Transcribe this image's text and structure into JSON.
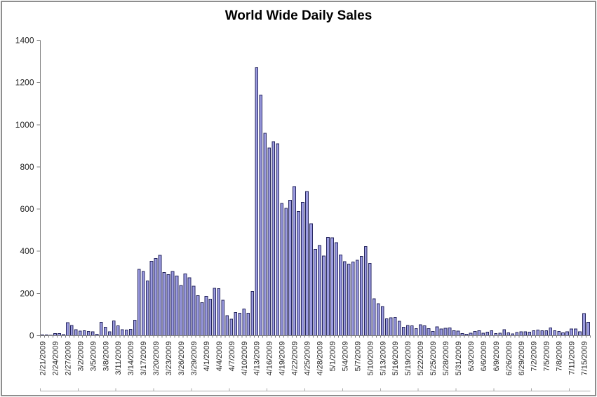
{
  "window": {
    "background": "#FFFFFF",
    "frame_border_color": "#8E8E8E"
  },
  "chart_data": {
    "type": "bar",
    "title": "World Wide Daily Sales",
    "xlabel": "",
    "ylabel": "",
    "ylim": [
      0,
      1400
    ],
    "y_tick_step": 200,
    "y_ticks": [
      0,
      200,
      400,
      600,
      800,
      1000,
      1200,
      1400
    ],
    "grid": "off",
    "legend": "none",
    "label_every": 3,
    "bar_fill": "#9B9BE0",
    "bar_border": "#26265E",
    "axis_color": "#808080",
    "outer_tick_color": "#ABABAB",
    "tick_label_color": "#262626",
    "categories": [
      "2/21/2009",
      "2/22/2009",
      "2/23/2009",
      "2/24/2009",
      "2/25/2009",
      "2/26/2009",
      "2/27/2009",
      "2/28/2009",
      "3/1/2009",
      "3/2/2009",
      "3/3/2009",
      "3/4/2009",
      "3/5/2009",
      "3/6/2009",
      "3/7/2009",
      "3/8/2009",
      "3/9/2009",
      "3/10/2009",
      "3/11/2009",
      "3/12/2009",
      "3/13/2009",
      "3/14/2009",
      "3/15/2009",
      "3/16/2009",
      "3/17/2009",
      "3/18/2009",
      "3/19/2009",
      "3/20/2009",
      "3/21/2009",
      "3/22/2009",
      "3/23/2009",
      "3/24/2009",
      "3/25/2009",
      "3/26/2009",
      "3/27/2009",
      "3/28/2009",
      "3/29/2009",
      "3/30/2009",
      "3/31/2009",
      "4/1/2009",
      "4/2/2009",
      "4/3/2009",
      "4/4/2009",
      "4/5/2009",
      "4/6/2009",
      "4/7/2009",
      "4/8/2009",
      "4/9/2009",
      "4/10/2009",
      "4/11/2009",
      "4/12/2009",
      "4/13/2009",
      "4/14/2009",
      "4/15/2009",
      "4/16/2009",
      "4/17/2009",
      "4/18/2009",
      "4/19/2009",
      "4/20/2009",
      "4/21/2009",
      "4/22/2009",
      "4/23/2009",
      "4/24/2009",
      "4/25/2009",
      "4/26/2009",
      "4/27/2009",
      "4/28/2009",
      "4/29/2009",
      "4/30/2009",
      "5/1/2009",
      "5/2/2009",
      "5/3/2009",
      "5/4/2009",
      "5/5/2009",
      "5/6/2009",
      "5/7/2009",
      "5/8/2009",
      "5/9/2009",
      "5/10/2009",
      "5/11/2009",
      "5/12/2009",
      "5/13/2009",
      "5/14/2009",
      "5/15/2009",
      "5/16/2009",
      "5/17/2009",
      "5/18/2009",
      "5/19/2009",
      "5/20/2009",
      "5/21/2009",
      "5/22/2009",
      "5/23/2009",
      "5/24/2009",
      "5/25/2009",
      "5/26/2009",
      "5/27/2009",
      "5/28/2009",
      "5/29/2009",
      "5/30/2009",
      "5/31/2009",
      "6/1/2009",
      "6/2/2009",
      "6/3/2009",
      "6/4/2009",
      "6/5/2009",
      "6/6/2009",
      "6/7/2009",
      "6/8/2009",
      "6/9/2009",
      "6/24/2009",
      "6/25/2009",
      "6/26/2009",
      "6/27/2009",
      "6/28/2009",
      "6/29/2009",
      "6/30/2009",
      "7/1/2009",
      "7/2/2009",
      "7/3/2009",
      "7/4/2009",
      "7/5/2009",
      "7/6/2009",
      "7/7/2009",
      "7/8/2009",
      "7/9/2009",
      "7/10/2009",
      "7/11/2009",
      "7/12/2009",
      "7/14/2009",
      "7/15/2009",
      "7/16/2009"
    ],
    "values": [
      4,
      4,
      2,
      10,
      10,
      5,
      61,
      48,
      29,
      22,
      23,
      20,
      18,
      7,
      63,
      40,
      18,
      70,
      46,
      29,
      26,
      30,
      73,
      315,
      304,
      260,
      353,
      365,
      380,
      300,
      289,
      304,
      282,
      238,
      293,
      275,
      234,
      190,
      156,
      187,
      173,
      225,
      223,
      168,
      95,
      78,
      109,
      107,
      127,
      107,
      209,
      1270,
      1140,
      960,
      890,
      920,
      910,
      627,
      603,
      642,
      707,
      589,
      631,
      683,
      531,
      409,
      428,
      378,
      465,
      464,
      440,
      382,
      351,
      340,
      349,
      357,
      376,
      423,
      342,
      175,
      151,
      138,
      80,
      84,
      87,
      68,
      40,
      49,
      46,
      34,
      51,
      46,
      34,
      20,
      42,
      32,
      35,
      37,
      23,
      21,
      10,
      7,
      12,
      20,
      23,
      12,
      16,
      23,
      10,
      12,
      28,
      14,
      9,
      15,
      19,
      19,
      17,
      23,
      27,
      24,
      23,
      36,
      24,
      20,
      13,
      18,
      31,
      31,
      18,
      105,
      63
    ],
    "x_tick_labels_shown": [
      "2/21/2009",
      "2/24/2009",
      "2/27/2009",
      "3/2/2009",
      "3/5/2009",
      "3/8/2009",
      "3/11/2009",
      "3/14/2009",
      "3/17/2009",
      "3/20/2009",
      "3/23/2009",
      "3/26/2009",
      "3/29/2009",
      "4/1/2009",
      "4/4/2009",
      "4/7/2009",
      "4/10/2009",
      "4/13/2009",
      "4/16/2009",
      "4/19/2009",
      "4/22/2009",
      "4/25/2009",
      "4/28/2009",
      "5/1/2009",
      "5/4/2009",
      "5/7/2009",
      "5/10/2009",
      "5/13/2009",
      "5/16/2009",
      "5/19/2009",
      "5/22/2009",
      "5/25/2009",
      "5/28/2009",
      "5/31/2009",
      "6/3/2009",
      "6/6/2009",
      "6/9/2009",
      "6/26/2009",
      "6/29/2009",
      "7/2/2009",
      "7/5/2009",
      "7/8/2009",
      "7/11/2009",
      "7/15/2009"
    ]
  }
}
